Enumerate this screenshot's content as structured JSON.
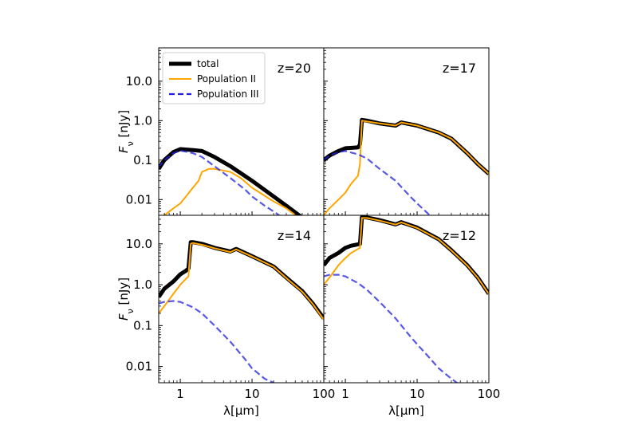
{
  "chart_data": {
    "type": "line",
    "layout": "2x2 panels, shared axes",
    "xlabel": "λ[μm]",
    "ylabel": "F_ν [nJy]",
    "x_scale": "log",
    "y_scale": "log",
    "xlim": [
      0.5,
      100
    ],
    "ylim_top_row": [
      0.004,
      70
    ],
    "ylim_bottom_row": [
      0.004,
      50
    ],
    "x_ticks": [
      {
        "v": 1,
        "label": "1"
      },
      {
        "v": 10,
        "label": "10"
      },
      {
        "v": 100,
        "label": "100"
      }
    ],
    "y_ticks": [
      {
        "v": 0.01,
        "label": "0.01"
      },
      {
        "v": 0.1,
        "label": "0.1"
      },
      {
        "v": 1,
        "label": "1.0"
      },
      {
        "v": 10,
        "label": "10.0"
      }
    ],
    "legend": {
      "placement": "upper-left of first panel",
      "entries": [
        {
          "label": "total",
          "color": "#000000",
          "style": "solid-thick"
        },
        {
          "label": "Population II",
          "color": "#FFA500",
          "style": "solid"
        },
        {
          "label": "Population III",
          "color": "#2020E0",
          "style": "dashed"
        }
      ]
    },
    "panels": [
      {
        "label": "z=20",
        "series": [
          {
            "name": "total",
            "x": [
              0.5,
              0.6,
              0.8,
              1.0,
              1.5,
              2.0,
              3.0,
              5.0,
              10,
              20,
              30,
              50
            ],
            "y": [
              0.06,
              0.1,
              0.16,
              0.19,
              0.18,
              0.17,
              0.12,
              0.07,
              0.03,
              0.012,
              0.007,
              0.0035
            ]
          },
          {
            "name": "Population II",
            "x": [
              0.5,
              0.6,
              0.8,
              1.0,
              1.2,
              1.5,
              1.8,
              2.0,
              2.5,
              3.0,
              5.0,
              7.0,
              10,
              20,
              30,
              50
            ],
            "y": [
              0.003,
              0.004,
              0.006,
              0.008,
              0.012,
              0.02,
              0.03,
              0.05,
              0.06,
              0.06,
              0.05,
              0.035,
              0.02,
              0.009,
              0.006,
              0.003
            ]
          },
          {
            "name": "Population III",
            "x": [
              0.5,
              0.6,
              0.8,
              1.0,
              1.5,
              2.0,
              3.0,
              5.0,
              8.0,
              10,
              15,
              20,
              30
            ],
            "y": [
              0.065,
              0.1,
              0.15,
              0.175,
              0.15,
              0.12,
              0.07,
              0.035,
              0.018,
              0.012,
              0.007,
              0.005,
              0.003
            ]
          }
        ]
      },
      {
        "label": "z=17",
        "series": [
          {
            "name": "total",
            "x": [
              0.5,
              0.6,
              0.8,
              1.0,
              1.5,
              1.6,
              1.7,
              2.0,
              3.0,
              5.0,
              6.0,
              10,
              20,
              30,
              50,
              70,
              100
            ],
            "y": [
              0.1,
              0.13,
              0.17,
              0.2,
              0.21,
              0.25,
              1.05,
              1.0,
              0.85,
              0.75,
              0.9,
              0.75,
              0.5,
              0.35,
              0.15,
              0.08,
              0.045
            ]
          },
          {
            "name": "Population II",
            "x": [
              0.5,
              0.6,
              0.8,
              1.0,
              1.2,
              1.5,
              1.6,
              1.7,
              2.0,
              3.0,
              5.0,
              6.0,
              10,
              20,
              30,
              50,
              70,
              100
            ],
            "y": [
              0.004,
              0.006,
              0.01,
              0.015,
              0.025,
              0.04,
              0.08,
              1.0,
              0.95,
              0.85,
              0.75,
              0.9,
              0.75,
              0.5,
              0.35,
              0.15,
              0.08,
              0.045
            ]
          },
          {
            "name": "Population III",
            "x": [
              0.5,
              0.6,
              0.8,
              1.0,
              1.5,
              2.0,
              3.0,
              5.0,
              8.0,
              10,
              15
            ],
            "y": [
              0.1,
              0.13,
              0.16,
              0.17,
              0.14,
              0.11,
              0.06,
              0.03,
              0.012,
              0.008,
              0.004
            ]
          }
        ]
      },
      {
        "label": "z=14",
        "series": [
          {
            "name": "total",
            "x": [
              0.5,
              0.6,
              0.8,
              1.0,
              1.2,
              1.3,
              1.4,
              1.5,
              2.0,
              3.0,
              5.0,
              6.0,
              10,
              20,
              30,
              50,
              70,
              100
            ],
            "y": [
              0.5,
              0.8,
              1.2,
              1.8,
              2.2,
              2.5,
              11,
              11,
              10,
              8,
              6.5,
              7.5,
              5.0,
              2.8,
              1.5,
              0.7,
              0.35,
              0.15
            ]
          },
          {
            "name": "Population II",
            "x": [
              0.5,
              0.6,
              0.8,
              1.0,
              1.2,
              1.3,
              1.4,
              1.5,
              2.0,
              3.0,
              5.0,
              6.0,
              10,
              20,
              30,
              50,
              70,
              100
            ],
            "y": [
              0.2,
              0.3,
              0.6,
              1.0,
              1.4,
              1.6,
              10,
              10.5,
              9.5,
              7.8,
              6.3,
              7.3,
              4.9,
              2.75,
              1.45,
              0.68,
              0.34,
              0.14
            ]
          },
          {
            "name": "Population III",
            "x": [
              0.5,
              0.6,
              0.8,
              1.0,
              1.5,
              2.0,
              3.0,
              5.0,
              8.0,
              10,
              15,
              20
            ],
            "y": [
              0.35,
              0.38,
              0.4,
              0.38,
              0.28,
              0.2,
              0.1,
              0.04,
              0.015,
              0.009,
              0.005,
              0.004
            ]
          }
        ]
      },
      {
        "label": "z=12",
        "series": [
          {
            "name": "total",
            "x": [
              0.5,
              0.6,
              0.8,
              1.0,
              1.2,
              1.4,
              1.6,
              1.7,
              2.0,
              3.0,
              5.0,
              6.0,
              10,
              20,
              30,
              50,
              70,
              100
            ],
            "y": [
              3.0,
              4.5,
              6.0,
              8.0,
              9.0,
              9.5,
              10,
              45,
              44,
              38,
              30,
              34,
              25,
              13,
              7,
              3.0,
              1.5,
              0.6
            ]
          },
          {
            "name": "Population II",
            "x": [
              0.5,
              0.6,
              0.8,
              1.0,
              1.2,
              1.4,
              1.6,
              1.7,
              2.0,
              3.0,
              5.0,
              6.0,
              10,
              20,
              30,
              50,
              70,
              100
            ],
            "y": [
              1.0,
              1.5,
              3.0,
              4.5,
              6.0,
              7.0,
              8.0,
              43,
              43,
              37,
              29.5,
              33.5,
              24.5,
              12.8,
              6.9,
              2.95,
              1.48,
              0.59
            ]
          },
          {
            "name": "Population III",
            "x": [
              0.5,
              0.6,
              0.8,
              1.0,
              1.5,
              2.0,
              3.0,
              5.0,
              8.0,
              10,
              15,
              20,
              30,
              40
            ],
            "y": [
              1.6,
              1.75,
              1.75,
              1.6,
              1.1,
              0.75,
              0.38,
              0.15,
              0.055,
              0.035,
              0.016,
              0.009,
              0.005,
              0.0035
            ]
          }
        ]
      }
    ]
  }
}
